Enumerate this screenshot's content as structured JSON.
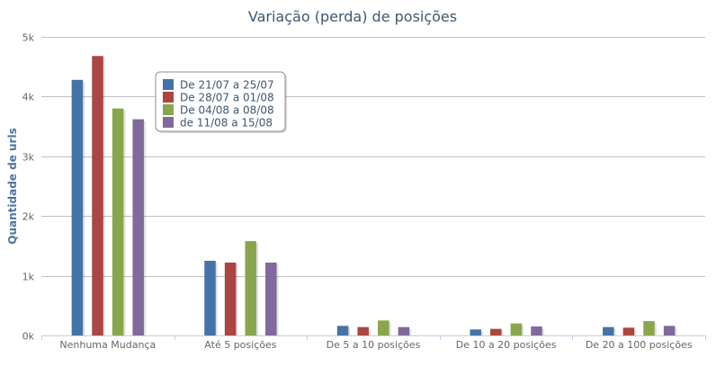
{
  "chart_data": {
    "type": "bar",
    "title": "Variação (perda) de posições",
    "xlabel": "",
    "ylabel": "Quantidade de urls",
    "ylim": [
      0,
      5000
    ],
    "y_ticks": [
      "0k",
      "1k",
      "2k",
      "3k",
      "4k",
      "5k"
    ],
    "grid": true,
    "legend_position": "top-left",
    "categories": [
      "Nenhuma Mudança",
      "Até 5 posições",
      "De 5 a 10 posições",
      "De 10 a 20 posições",
      "De 20 a 100 posições"
    ],
    "series": [
      {
        "name": "De 21/07 a 25/07",
        "color": "#4572a7",
        "values": [
          4280,
          1250,
          160,
          100,
          140
        ]
      },
      {
        "name": "De 28/07 a 01/08",
        "color": "#aa4643",
        "values": [
          4680,
          1220,
          140,
          110,
          130
        ]
      },
      {
        "name": "De 04/08 a 08/08",
        "color": "#89a54e",
        "values": [
          3800,
          1580,
          250,
          200,
          240
        ]
      },
      {
        "name": "de 11/08 a 15/08",
        "color": "#80699b",
        "values": [
          3620,
          1220,
          140,
          150,
          160
        ]
      }
    ]
  }
}
